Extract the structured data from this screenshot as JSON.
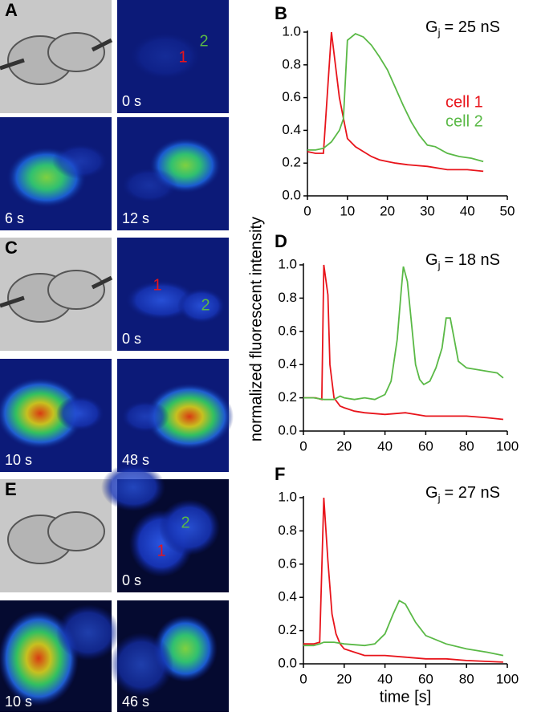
{
  "image_panels": [
    {
      "label": "A",
      "frames": [
        {
          "time": "0 s",
          "cells": [
            "1",
            "2"
          ]
        },
        {
          "time": "6 s"
        },
        {
          "time": "12 s"
        }
      ]
    },
    {
      "label": "C",
      "frames": [
        {
          "time": "0 s",
          "cells": [
            "1",
            "2"
          ]
        },
        {
          "time": "10 s"
        },
        {
          "time": "48 s"
        }
      ]
    },
    {
      "label": "E",
      "frames": [
        {
          "time": "0 s",
          "cells": [
            "1",
            "2"
          ]
        },
        {
          "time": "10 s"
        },
        {
          "time": "46 s"
        }
      ]
    }
  ],
  "chart_data": [
    {
      "type": "line",
      "title": "B",
      "annotation": {
        "symbol": "G",
        "subscript": "j",
        "text": "= 25 nS"
      },
      "legend": true,
      "xlim": [
        0,
        50
      ],
      "xticks": [
        0,
        10,
        20,
        30,
        40,
        50
      ],
      "ylim": [
        0,
        1
      ],
      "yticks": [
        {
          "value": 0,
          "label": "0.0"
        },
        {
          "value": 0.2,
          "label": "0.2"
        },
        {
          "value": 0.4,
          "label": "0.4"
        },
        {
          "value": 0.6,
          "label": "0.6"
        },
        {
          "value": 0.8,
          "label": "0.8"
        },
        {
          "value": 1,
          "label": "1.0"
        }
      ],
      "series": [
        {
          "name": "cell 1",
          "color": "#e8141b",
          "x": [
            0,
            2,
            4,
            6,
            8,
            10,
            12,
            14,
            16,
            18,
            20,
            22,
            25,
            30,
            35,
            40,
            44
          ],
          "values": [
            0.27,
            0.26,
            0.26,
            1.0,
            0.6,
            0.35,
            0.3,
            0.27,
            0.24,
            0.22,
            0.21,
            0.2,
            0.19,
            0.18,
            0.16,
            0.16,
            0.15
          ]
        },
        {
          "name": "cell 2",
          "color": "#5ab946",
          "x": [
            0,
            2,
            4,
            6,
            8,
            9,
            10,
            12,
            14,
            16,
            18,
            20,
            22,
            24,
            26,
            28,
            30,
            32,
            35,
            38,
            41,
            44
          ],
          "values": [
            0.28,
            0.28,
            0.29,
            0.33,
            0.4,
            0.47,
            0.95,
            0.99,
            0.97,
            0.92,
            0.85,
            0.77,
            0.66,
            0.55,
            0.45,
            0.37,
            0.31,
            0.3,
            0.26,
            0.24,
            0.23,
            0.21
          ]
        }
      ]
    },
    {
      "type": "line",
      "title": "D",
      "annotation": {
        "symbol": "G",
        "subscript": "j",
        "text": "= 18 nS"
      },
      "ylabel": "normalized fluorescent intensity",
      "xlim": [
        0,
        100
      ],
      "xticks": [
        0,
        20,
        40,
        60,
        80,
        100
      ],
      "ylim": [
        0,
        1
      ],
      "yticks": [
        {
          "value": 0,
          "label": "0.0"
        },
        {
          "value": 0.2,
          "label": "0.2"
        },
        {
          "value": 0.4,
          "label": "0.4"
        },
        {
          "value": 0.6,
          "label": "0.6"
        },
        {
          "value": 0.8,
          "label": "0.8"
        },
        {
          "value": 1,
          "label": "1.0"
        }
      ],
      "series": [
        {
          "color": "#e8141b",
          "x": [
            0,
            3,
            6,
            9,
            10,
            12,
            13,
            15,
            18,
            20,
            25,
            30,
            40,
            50,
            60,
            70,
            80,
            90,
            98
          ],
          "values": [
            0.2,
            0.2,
            0.2,
            0.19,
            1.0,
            0.82,
            0.4,
            0.2,
            0.15,
            0.14,
            0.12,
            0.11,
            0.1,
            0.11,
            0.09,
            0.09,
            0.09,
            0.08,
            0.07
          ]
        },
        {
          "color": "#5ab946",
          "x": [
            0,
            5,
            10,
            15,
            18,
            20,
            25,
            30,
            35,
            40,
            43,
            46,
            48,
            49,
            51,
            53,
            55,
            57,
            59,
            62,
            65,
            68,
            70,
            72,
            74,
            76,
            80,
            85,
            90,
            95,
            98
          ],
          "values": [
            0.2,
            0.2,
            0.19,
            0.19,
            0.21,
            0.2,
            0.19,
            0.2,
            0.19,
            0.22,
            0.3,
            0.55,
            0.85,
            0.99,
            0.9,
            0.65,
            0.4,
            0.31,
            0.28,
            0.3,
            0.38,
            0.5,
            0.68,
            0.68,
            0.55,
            0.42,
            0.38,
            0.37,
            0.36,
            0.35,
            0.32
          ]
        }
      ]
    },
    {
      "type": "line",
      "title": "F",
      "annotation": {
        "symbol": "G",
        "subscript": "j",
        "text": "= 27 nS"
      },
      "xlabel": "time [s]",
      "xlim": [
        0,
        100
      ],
      "xticks": [
        0,
        20,
        40,
        60,
        80,
        100
      ],
      "ylim": [
        0,
        1
      ],
      "yticks": [
        {
          "value": 0,
          "label": "0.0"
        },
        {
          "value": 0.2,
          "label": "0.2"
        },
        {
          "value": 0.4,
          "label": "0.4"
        },
        {
          "value": 0.6,
          "label": "0.6"
        },
        {
          "value": 0.8,
          "label": "0.8"
        },
        {
          "value": 1,
          "label": "1.0"
        }
      ],
      "series": [
        {
          "color": "#e8141b",
          "x": [
            0,
            5,
            8,
            10,
            12,
            14,
            16,
            18,
            20,
            25,
            30,
            40,
            50,
            60,
            70,
            80,
            98
          ],
          "values": [
            0.12,
            0.12,
            0.13,
            1.0,
            0.62,
            0.3,
            0.18,
            0.12,
            0.09,
            0.07,
            0.05,
            0.05,
            0.04,
            0.03,
            0.03,
            0.02,
            0.01
          ]
        },
        {
          "color": "#5ab946",
          "x": [
            0,
            5,
            8,
            10,
            15,
            20,
            30,
            35,
            40,
            44,
            47,
            50,
            55,
            60,
            70,
            80,
            90,
            98
          ],
          "values": [
            0.11,
            0.11,
            0.12,
            0.13,
            0.13,
            0.12,
            0.11,
            0.12,
            0.18,
            0.3,
            0.38,
            0.36,
            0.25,
            0.17,
            0.12,
            0.09,
            0.07,
            0.05
          ]
        }
      ]
    }
  ]
}
